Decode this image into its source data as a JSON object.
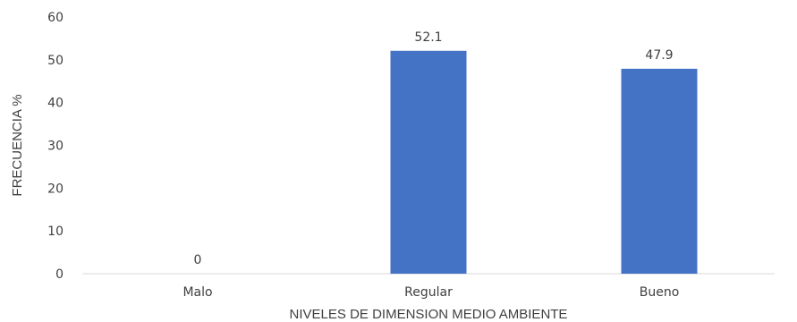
{
  "chart_data": {
    "type": "bar",
    "categories": [
      "Malo",
      "Regular",
      "Bueno"
    ],
    "values": [
      0,
      52.1,
      47.9
    ],
    "data_labels": [
      "0",
      "52.1",
      "47.9"
    ],
    "xlabel": "NIVELES DE DIMENSION MEDIO AMBIENTE",
    "ylabel": "FRECUENCIA %",
    "ylim": [
      0,
      60
    ],
    "yticks": [
      "0",
      "10",
      "20",
      "30",
      "40",
      "50",
      "60"
    ],
    "grid": false,
    "legend": "none",
    "colors": {
      "bar": "#4472C4",
      "axis": "#d9d9d9",
      "text": "#404040"
    }
  }
}
